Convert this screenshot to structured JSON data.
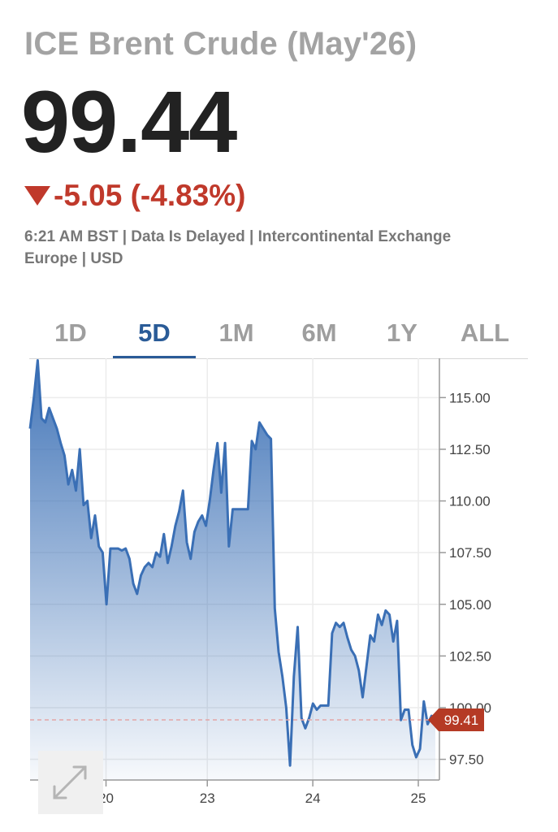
{
  "header": {
    "title": "ICE Brent Crude (May'26)",
    "price": "99.44",
    "change": "-5.05 (-4.83%)",
    "meta_line1": "6:21 AM BST | Data Is Delayed | Intercontinental Exchange",
    "meta_line2": "Europe | USD",
    "down_color": "#c0392b"
  },
  "tabs": [
    {
      "label": "1D",
      "active": false
    },
    {
      "label": "5D",
      "active": true
    },
    {
      "label": "1M",
      "active": false
    },
    {
      "label": "6M",
      "active": false
    },
    {
      "label": "1Y",
      "active": false
    },
    {
      "label": "ALL",
      "active": false
    }
  ],
  "expand_icon": "expand-arrows-icon",
  "chart_data": {
    "type": "area",
    "line_color": "#3a6fb5",
    "ylim": [
      96.5,
      116.9
    ],
    "yticks": [
      "115.00",
      "112.50",
      "110.00",
      "107.50",
      "105.00",
      "102.50",
      "100.00",
      "97.50"
    ],
    "ytick_values": [
      115,
      112.5,
      110,
      107.5,
      105,
      102.5,
      100,
      97.5
    ],
    "xticks": [
      "20",
      "23",
      "24",
      "25"
    ],
    "xtick_index": [
      18,
      42,
      67,
      92
    ],
    "x_range": [
      0,
      97
    ],
    "last_price_label": "99.41",
    "last_price": 99.41,
    "series": [
      {
        "values": [
          113.5,
          115.0,
          116.8,
          114.0,
          113.8,
          114.5,
          114.0,
          113.5,
          112.8,
          112.2,
          110.8,
          111.5,
          110.5,
          112.5,
          109.8,
          110.0,
          108.2,
          109.3,
          107.8,
          107.5,
          105.0,
          107.7,
          107.7,
          107.7,
          107.6,
          107.7,
          107.2,
          106.0,
          105.5,
          106.4,
          106.8,
          107.0,
          106.8,
          107.5,
          107.3,
          108.4,
          107.0,
          107.8,
          108.8,
          109.5,
          110.5,
          108.0,
          107.2,
          108.5,
          109.0,
          109.3,
          108.8,
          110.0,
          111.5,
          112.8,
          110.4,
          112.8,
          107.8,
          109.6,
          109.6,
          109.6,
          109.6,
          109.6,
          112.9,
          112.5,
          113.8,
          113.5,
          113.2,
          113.0,
          104.8,
          102.7,
          101.5,
          100.0,
          97.2,
          101.5,
          103.9,
          99.5,
          99.0,
          99.5,
          100.2,
          99.9,
          100.1,
          100.1,
          100.1,
          103.6,
          104.1,
          103.9,
          104.1,
          103.4,
          102.8,
          102.5,
          101.8,
          100.5,
          102.0,
          103.5,
          103.2,
          104.5,
          104.0,
          104.7,
          104.5,
          103.2,
          104.2,
          99.4,
          99.9,
          99.9,
          98.2,
          97.6,
          98.0,
          100.3,
          99.2,
          99.6,
          99.41
        ]
      }
    ]
  }
}
